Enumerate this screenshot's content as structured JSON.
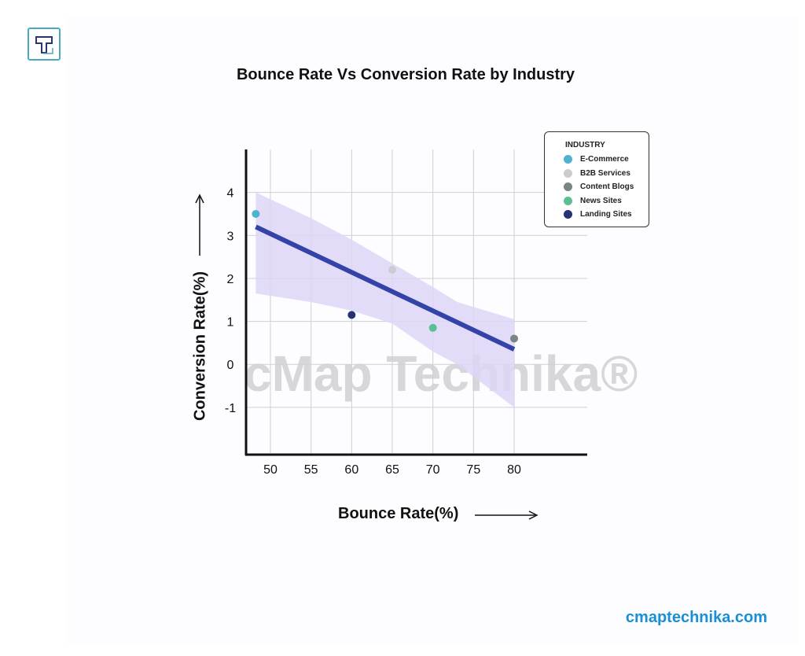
{
  "logo_letter": "T",
  "footer": "cmaptechnika.com",
  "watermark": "cMap Technika®",
  "chart_data": {
    "type": "scatter",
    "title": "Bounce Rate Vs Conversion Rate by Industry",
    "xlabel": "Bounce Rate(%)",
    "ylabel": "Conversion Rate(%)",
    "xlim": [
      47,
      89
    ],
    "ylim": [
      -2.1,
      5
    ],
    "xticks": [
      50,
      55,
      60,
      65,
      70,
      75,
      80
    ],
    "yticks": [
      -1,
      0,
      1,
      2,
      3,
      4
    ],
    "grid": true,
    "legend": {
      "title": "INDUSTRY",
      "placement": "top-right"
    },
    "series": [
      {
        "name": "E-Commerce",
        "color": "#4fb3cf",
        "x": 48.2,
        "y": 3.5
      },
      {
        "name": "B2B Services",
        "color": "#c9cdd0",
        "x": 65,
        "y": 2.2
      },
      {
        "name": "Content Blogs",
        "color": "#7b8583",
        "x": 80,
        "y": 0.6
      },
      {
        "name": "News Sites",
        "color": "#5bbf94",
        "x": 70,
        "y": 0.85
      },
      {
        "name": "Landing Sites",
        "color": "#263273",
        "x": 60,
        "y": 1.15
      }
    ],
    "trendline": {
      "color": "#3443a8",
      "x": [
        48.2,
        80
      ],
      "y": [
        3.2,
        0.35
      ]
    },
    "confidence_band": {
      "color": "#ddd6f7",
      "x": [
        48.2,
        55,
        60,
        65,
        70,
        73,
        80
      ],
      "upper": [
        4.0,
        3.4,
        2.9,
        2.35,
        1.8,
        1.45,
        1.05
      ],
      "lower": [
        1.65,
        1.45,
        1.25,
        0.95,
        0.3,
        0.0,
        -1.0
      ]
    }
  }
}
